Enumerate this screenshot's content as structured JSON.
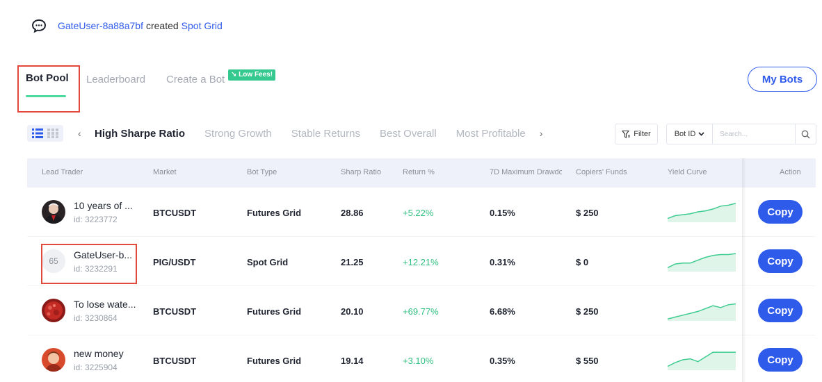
{
  "activity": {
    "user": "GateUser-8a88a7bf",
    "verb": "created",
    "item": "Spot Grid"
  },
  "tabs": {
    "bot_pool": "Bot Pool",
    "leaderboard": "Leaderboard",
    "create": "Create a Bot",
    "low_fees_badge": "Low Fees!",
    "my_bots": "My Bots"
  },
  "categories": {
    "prev_arrow": "‹",
    "next_arrow": "›",
    "items": [
      "High Sharpe Ratio",
      "Strong Growth",
      "Stable Returns",
      "Best Overall",
      "Most Profitable"
    ]
  },
  "filter": {
    "filter_label": "Filter",
    "select_value": "Bot ID",
    "search_placeholder": "Search..."
  },
  "table": {
    "headers": [
      "Lead Trader",
      "Market",
      "Bot Type",
      "Sharp Ratio",
      "Return %",
      "7D Maximum Drawdown",
      "Copiers' Funds",
      "Yield Curve",
      "Action"
    ],
    "rows": [
      {
        "name": "10 years of ...",
        "id": "id: 3223772",
        "avatar_number": "",
        "market": "BTCUSDT",
        "bot_type": "Futures Grid",
        "sharp": "28.86",
        "return": "+5.22%",
        "drawdown": "0.15%",
        "funds": "$ 250",
        "action": "Copy",
        "curve": [
          2,
          3.5,
          4,
          4.5,
          5.5,
          6,
          7,
          8.5,
          9,
          10
        ]
      },
      {
        "name": "GateUser-b...",
        "id": "id: 3232291",
        "avatar_number": "65",
        "market": "PIG/USDT",
        "bot_type": "Spot Grid",
        "sharp": "21.25",
        "return": "+12.21%",
        "drawdown": "0.31%",
        "funds": "$ 0",
        "action": "Copy",
        "curve": [
          2,
          4,
          4.5,
          4.5,
          6,
          7.5,
          8.5,
          9,
          9,
          9.5
        ]
      },
      {
        "name": "To lose wate...",
        "id": "id: 3230864",
        "avatar_number": "",
        "market": "BTCUSDT",
        "bot_type": "Futures Grid",
        "sharp": "20.10",
        "return": "+69.77%",
        "drawdown": "6.68%",
        "funds": "$ 250",
        "action": "Copy",
        "curve": [
          1,
          2,
          3,
          4,
          5,
          6.5,
          8,
          7,
          8.5,
          9
        ]
      },
      {
        "name": "new money",
        "id": "id: 3225904",
        "avatar_number": "",
        "market": "BTCUSDT",
        "bot_type": "Futures Grid",
        "sharp": "19.14",
        "return": "+3.10%",
        "drawdown": "0.35%",
        "funds": "$ 550",
        "action": "Copy",
        "curve": [
          2,
          4,
          5.5,
          6,
          4.5,
          7,
          9.5,
          9.5,
          9.5,
          9.5
        ]
      }
    ]
  },
  "colors": {
    "accent": "#2f5bea",
    "positive": "#2fbf7f",
    "highlight_box": "#e2483c",
    "curve_line": "#3dcc8f",
    "curve_fill": "#dff5ea"
  }
}
